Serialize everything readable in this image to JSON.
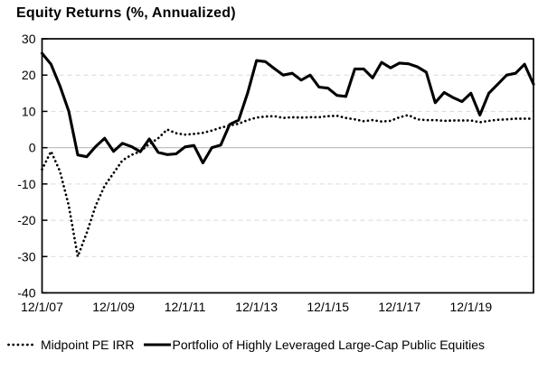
{
  "title": "Equity Returns (%, Annualized)",
  "legend": [
    {
      "label": "Midpoint PE IRR",
      "style": "dotted"
    },
    {
      "label": "Portfolio of Highly Leveraged Large-Cap Public Equities",
      "style": "solid"
    }
  ],
  "chart_data": {
    "type": "line",
    "title": "Equity Returns (%, Annualized)",
    "xlabel": "",
    "ylabel": "",
    "ylim": [
      -40,
      30
    ],
    "y_ticks": [
      30,
      20,
      10,
      0,
      -10,
      -20,
      -30,
      -40
    ],
    "x_tick_labels": [
      "12/1/07",
      "12/1/09",
      "12/1/11",
      "12/1/13",
      "12/1/15",
      "12/1/17",
      "12/1/19"
    ],
    "x_start": "12/1/07",
    "x_end": "9/1/21",
    "x_frequency": "quarterly",
    "points_per_x_tick": 8,
    "grid": "horizontal, dashed light gray; solid light gray line at 0; black border around plot area",
    "legend_position": "bottom-left",
    "colors": {
      "series": "#000000",
      "gridline": "#d9d9d9",
      "zero_line": "#c0c0c0",
      "axis_border": "#000000",
      "background": "#ffffff",
      "text": "#000000"
    },
    "series": [
      {
        "name": "Midpoint PE IRR",
        "style": "dotted",
        "color": "#000000",
        "values": [
          -6,
          -1,
          -6.5,
          -16,
          -30,
          -23.5,
          -16,
          -10.5,
          -7,
          -3.5,
          -2,
          -1,
          1,
          2.6,
          5,
          4,
          3.6,
          3.8,
          4.1,
          4.7,
          5.5,
          6.1,
          6.6,
          7.6,
          8.3,
          8.6,
          8.7,
          8.2,
          8.4,
          8.3,
          8.4,
          8.4,
          8.7,
          8.8,
          8.2,
          7.8,
          7.3,
          7.6,
          7.2,
          7.4,
          8.4,
          9,
          7.8,
          7.6,
          7.6,
          7.4,
          7.5,
          7.5,
          7.5,
          7,
          7.4,
          7.7,
          7.8,
          8,
          8,
          8
        ]
      },
      {
        "name": "Portfolio of Highly Leveraged Large-Cap Public Equities",
        "style": "solid",
        "color": "#000000",
        "values": [
          26,
          23,
          17,
          10,
          -2,
          -2.5,
          0.3,
          2.6,
          -1,
          1.2,
          0.3,
          -1.1,
          2.4,
          -1.3,
          -1.9,
          -1.7,
          0.2,
          0.6,
          -4.2,
          0,
          0.7,
          6.4,
          7.6,
          15,
          24,
          23.7,
          21.8,
          20,
          20.5,
          18.6,
          20,
          16.7,
          16.4,
          14.4,
          14.1,
          21.7,
          21.7,
          19.2,
          23.5,
          22,
          23.3,
          23.1,
          22.3,
          20.8,
          12.4,
          15.2,
          13.8,
          12.7,
          15,
          9,
          15,
          17.5,
          20,
          20.5,
          23,
          17.5
        ]
      }
    ]
  }
}
